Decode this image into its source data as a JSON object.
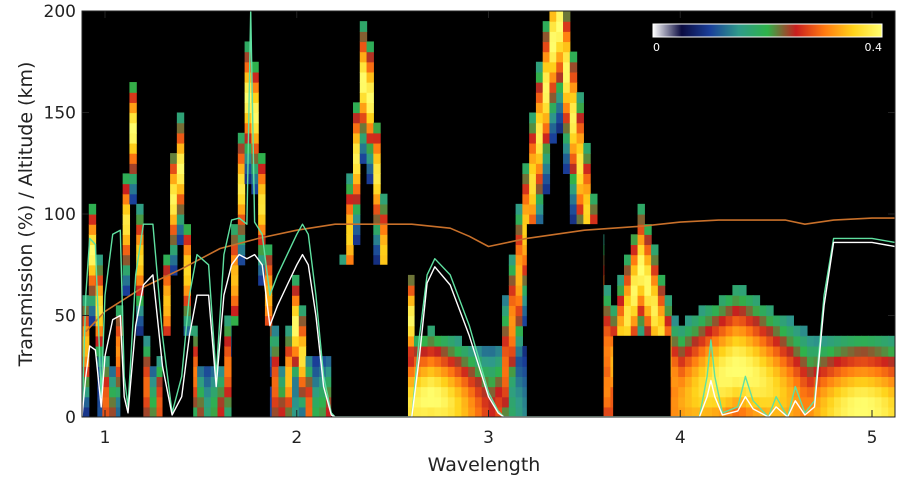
{
  "chart_data": {
    "type": "heatmap",
    "title": "",
    "xlabel": "Wavelength",
    "ylabel": "Transmission (%) / Altitude (km)",
    "xlim": [
      0.88,
      5.12
    ],
    "ylim": [
      0,
      200
    ],
    "x_ticks": [
      1,
      2,
      3,
      4,
      5
    ],
    "y_ticks": [
      0,
      50,
      100,
      150,
      200
    ],
    "grid": false,
    "colorbar": {
      "min_label": "0",
      "max_label": "0.4",
      "range": [
        0,
        0.4
      ],
      "placement": "top-right",
      "stops": [
        "#ffffff",
        "#0b0b40",
        "#1a3f9a",
        "#2f9a8a",
        "#2fb24a",
        "#c81e1e",
        "#ff7a10",
        "#ffd21a",
        "#ffff70"
      ]
    },
    "heat_peaks": [
      {
        "center": 0.94,
        "peak_km": 90,
        "width": 0.05
      },
      {
        "center": 1.14,
        "peak_km": 150,
        "width": 0.06
      },
      {
        "center": 1.38,
        "peak_km": 140,
        "width": 0.07
      },
      {
        "center": 1.76,
        "peak_km": 175,
        "width": 0.1
      },
      {
        "center": 2.0,
        "peak_km": 50,
        "width": 0.05
      },
      {
        "center": 2.36,
        "peak_km": 180,
        "width": 0.12
      },
      {
        "center": 2.58,
        "peak_km": 60,
        "width": 0.05
      },
      {
        "center": 2.7,
        "peak_km": 10,
        "width": 0.2
      },
      {
        "center": 3.36,
        "peak_km": 200,
        "width": 0.22
      },
      {
        "center": 3.8,
        "peak_km": 75,
        "width": 0.16
      },
      {
        "center": 4.3,
        "peak_km": 25,
        "width": 0.3
      },
      {
        "center": 4.95,
        "peak_km": 5,
        "width": 0.25
      }
    ],
    "black_regions": [
      {
        "x_start": 0.93,
        "x_end": 0.96,
        "top_km": 30
      },
      {
        "x_start": 1.08,
        "x_end": 1.2,
        "top_km": 40
      },
      {
        "x_start": 1.3,
        "x_end": 1.46,
        "top_km": 40
      },
      {
        "x_start": 1.66,
        "x_end": 1.86,
        "top_km": 45
      },
      {
        "x_start": 2.18,
        "x_end": 2.58,
        "top_km": 75
      },
      {
        "x_start": 3.2,
        "x_end": 3.6,
        "top_km": 95
      },
      {
        "x_start": 3.65,
        "x_end": 3.95,
        "top_km": 40
      }
    ],
    "series": [
      {
        "color": "#c8702a",
        "x": [
          0.9,
          1.0,
          1.2,
          1.4,
          1.6,
          1.8,
          2.0,
          2.2,
          2.4,
          2.6,
          2.8,
          2.9,
          3.0,
          3.2,
          3.5,
          3.8,
          4.0,
          4.2,
          4.4,
          4.55,
          4.65,
          4.8,
          5.0,
          5.12
        ],
        "y": [
          42,
          52,
          64,
          73,
          83,
          88,
          92,
          95,
          95,
          95,
          93,
          89,
          84,
          88,
          92,
          94,
          96,
          97,
          97,
          97,
          95,
          97,
          98,
          98
        ]
      },
      {
        "color": "#5fe0a0",
        "x": [
          0.88,
          0.9,
          0.92,
          0.95,
          0.98,
          1.0,
          1.04,
          1.08,
          1.1,
          1.12,
          1.16,
          1.2,
          1.25,
          1.3,
          1.35,
          1.4,
          1.44,
          1.48,
          1.54,
          1.58,
          1.62,
          1.66,
          1.7,
          1.74,
          1.76,
          1.78,
          1.82,
          1.86,
          1.9,
          1.95,
          2.0,
          2.03,
          2.06,
          2.1,
          2.14,
          2.18,
          2.2,
          2.6,
          2.64,
          2.68,
          2.72,
          2.8,
          2.9,
          3.0,
          3.05,
          3.08,
          4.1,
          4.14,
          4.16,
          4.18,
          4.22,
          4.3,
          4.34,
          4.38,
          4.46,
          4.5,
          4.56,
          4.6,
          4.65,
          4.7,
          4.75,
          4.8,
          5.0,
          5.12
        ],
        "y": [
          0,
          60,
          88,
          85,
          10,
          60,
          90,
          92,
          20,
          5,
          70,
          95,
          95,
          40,
          2,
          20,
          60,
          80,
          75,
          20,
          80,
          97,
          98,
          95,
          200,
          96,
          90,
          60,
          70,
          80,
          90,
          95,
          90,
          60,
          20,
          2,
          0,
          0,
          40,
          70,
          78,
          70,
          45,
          12,
          3,
          0,
          0,
          20,
          38,
          20,
          2,
          5,
          20,
          8,
          0,
          10,
          0,
          15,
          2,
          8,
          60,
          88,
          88,
          86
        ]
      },
      {
        "color": "#ffffff",
        "x": [
          0.88,
          0.9,
          0.92,
          0.95,
          0.98,
          1.0,
          1.04,
          1.08,
          1.1,
          1.12,
          1.16,
          1.2,
          1.25,
          1.3,
          1.35,
          1.4,
          1.44,
          1.48,
          1.54,
          1.58,
          1.62,
          1.66,
          1.7,
          1.74,
          1.78,
          1.82,
          1.86,
          1.9,
          1.95,
          2.0,
          2.03,
          2.06,
          2.1,
          2.14,
          2.18,
          2.2,
          2.6,
          2.64,
          2.68,
          2.72,
          2.8,
          2.9,
          3.0,
          3.05,
          3.08,
          4.1,
          4.14,
          4.16,
          4.18,
          4.22,
          4.3,
          4.34,
          4.38,
          4.46,
          4.5,
          4.56,
          4.6,
          4.65,
          4.7,
          4.75,
          4.8,
          5.0,
          5.12
        ],
        "y": [
          0,
          20,
          35,
          33,
          5,
          30,
          48,
          50,
          10,
          2,
          45,
          65,
          70,
          25,
          1,
          10,
          40,
          60,
          60,
          15,
          60,
          75,
          80,
          78,
          80,
          75,
          45,
          55,
          65,
          75,
          80,
          75,
          50,
          15,
          1,
          0,
          0,
          30,
          66,
          74,
          65,
          40,
          10,
          2,
          0,
          0,
          10,
          18,
          10,
          1,
          3,
          10,
          4,
          0,
          5,
          0,
          8,
          1,
          5,
          55,
          86,
          86,
          84
        ]
      }
    ]
  }
}
